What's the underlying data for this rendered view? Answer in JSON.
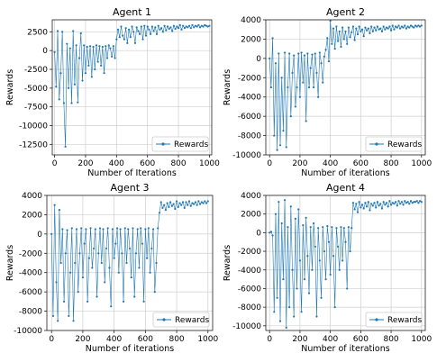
{
  "figure": {
    "background": "#ffffff"
  },
  "chart_data": [
    {
      "type": "line",
      "title": "Agent 1",
      "xlabel": "Number of Iterations",
      "ylabel": "Rewards",
      "xlim": [
        -15,
        1015
      ],
      "ylim": [
        -13900,
        4100
      ],
      "xticks": [
        0,
        200,
        400,
        600,
        800,
        1000
      ],
      "yticks": [
        2500,
        0,
        -2500,
        -5000,
        -7500,
        -10000,
        -12500
      ],
      "grid": true,
      "legend": {
        "location": "bottom-right",
        "entries": [
          "Rewards"
        ]
      },
      "series": [
        {
          "name": "Rewards",
          "color": "#1f77b4",
          "x": [
            0,
            10,
            20,
            30,
            40,
            50,
            60,
            70,
            80,
            90,
            100,
            110,
            120,
            130,
            140,
            150,
            160,
            170,
            180,
            190,
            200,
            210,
            220,
            230,
            240,
            250,
            260,
            270,
            280,
            290,
            300,
            310,
            320,
            330,
            340,
            350,
            360,
            370,
            380,
            390,
            400,
            410,
            420,
            430,
            440,
            450,
            460,
            470,
            480,
            490,
            500,
            510,
            520,
            530,
            540,
            550,
            560,
            570,
            580,
            590,
            600,
            610,
            620,
            630,
            640,
            650,
            660,
            670,
            680,
            690,
            700,
            710,
            720,
            730,
            740,
            750,
            760,
            770,
            780,
            790,
            800,
            810,
            820,
            830,
            840,
            850,
            860,
            870,
            880,
            890,
            900,
            910,
            920,
            930,
            940,
            950,
            960,
            970,
            980,
            990,
            1000
          ],
          "y": [
            -200,
            -4800,
            2600,
            -6500,
            -3000,
            2500,
            -7000,
            -12800,
            900,
            -5000,
            300,
            -7000,
            2600,
            -4500,
            700,
            -6900,
            -1000,
            2300,
            -4000,
            700,
            -3000,
            500,
            -2000,
            600,
            -3500,
            500,
            -2500,
            700,
            -1500,
            600,
            -2000,
            500,
            -3000,
            600,
            -1000,
            700,
            300,
            -800,
            600,
            -1000,
            1500,
            2800,
            1800,
            3200,
            2000,
            1500,
            3000,
            1000,
            2800,
            1800,
            3200,
            2500,
            1000,
            3100,
            2600,
            2200,
            3200,
            1500,
            3300,
            2000,
            3200,
            2800,
            2200,
            3200,
            2600,
            3100,
            2200,
            3300,
            2800,
            3000,
            2500,
            3300,
            2700,
            3200,
            2900,
            3100,
            2600,
            3300,
            2900,
            3200,
            3000,
            3400,
            2800,
            3300,
            3000,
            3200,
            3100,
            3300,
            3000,
            3400,
            3100,
            3300,
            3200,
            3400,
            3100,
            3300,
            3200,
            3400,
            3300,
            3200,
            3300
          ]
        }
      ]
    },
    {
      "type": "line",
      "title": "Agent 2",
      "xlabel": "Number of iterations",
      "ylabel": "Rewards",
      "xlim": [
        -25,
        1025
      ],
      "ylim": [
        -10000,
        4000
      ],
      "xticks": [
        0,
        200,
        400,
        600,
        800,
        1000
      ],
      "yticks": [
        4000,
        2000,
        0,
        -2000,
        -4000,
        -6000,
        -8000,
        -10000
      ],
      "grid": true,
      "legend": {
        "location": "bottom-right",
        "entries": [
          "Rewards"
        ]
      },
      "series": [
        {
          "name": "Rewards",
          "color": "#1f77b4",
          "x": [
            0,
            10,
            20,
            30,
            40,
            50,
            60,
            70,
            80,
            90,
            100,
            110,
            120,
            130,
            140,
            150,
            160,
            170,
            180,
            190,
            200,
            210,
            220,
            230,
            240,
            250,
            260,
            270,
            280,
            290,
            300,
            310,
            320,
            330,
            340,
            350,
            360,
            370,
            380,
            390,
            400,
            410,
            420,
            430,
            440,
            450,
            460,
            470,
            480,
            490,
            500,
            510,
            520,
            530,
            540,
            550,
            560,
            570,
            580,
            590,
            600,
            610,
            620,
            630,
            640,
            650,
            660,
            670,
            680,
            690,
            700,
            710,
            720,
            730,
            740,
            750,
            760,
            770,
            780,
            790,
            800,
            810,
            820,
            830,
            840,
            850,
            860,
            870,
            880,
            890,
            900,
            910,
            920,
            930,
            940,
            950,
            960,
            970,
            980,
            990,
            1000
          ],
          "y": [
            0,
            -3000,
            2100,
            -8000,
            -500,
            -9500,
            500,
            -9000,
            -2000,
            -7500,
            600,
            -9200,
            -3000,
            500,
            -6000,
            -1500,
            300,
            -5000,
            -3000,
            500,
            -4000,
            600,
            -2500,
            300,
            -6500,
            500,
            -3000,
            -1000,
            400,
            -3000,
            500,
            -1500,
            -4000,
            600,
            -500,
            -2500,
            200,
            900,
            2100,
            -300,
            3900,
            1500,
            3100,
            1000,
            3300,
            1800,
            2800,
            1200,
            3200,
            2000,
            2800,
            1500,
            3200,
            2200,
            2700,
            3300,
            1900,
            3100,
            2500,
            3300,
            2800,
            3000,
            2300,
            3200,
            2900,
            3100,
            2600,
            3300,
            2800,
            3200,
            2900,
            3300,
            3000,
            3100,
            2800,
            3300,
            3000,
            3200,
            3100,
            3300,
            2900,
            3400,
            3000,
            3300,
            3200,
            3400,
            3100,
            3300,
            3200,
            3400,
            3100,
            3300,
            3200,
            3400,
            3300,
            3200,
            3400,
            3300,
            3400,
            3300,
            3400
          ]
        }
      ]
    },
    {
      "type": "line",
      "title": "Agent 3",
      "xlabel": "Number of iterations",
      "ylabel": "Rewards",
      "xlim": [
        -30,
        1030
      ],
      "ylim": [
        -10000,
        4000
      ],
      "xticks": [
        0,
        200,
        400,
        600,
        800,
        1000
      ],
      "yticks": [
        4000,
        2000,
        0,
        -2000,
        -4000,
        -6000,
        -8000,
        -10000
      ],
      "grid": true,
      "legend": {
        "location": "bottom-right",
        "entries": [
          "Rewards"
        ]
      },
      "series": [
        {
          "name": "Rewards",
          "color": "#1f77b4",
          "x": [
            0,
            10,
            20,
            30,
            40,
            50,
            60,
            70,
            80,
            90,
            100,
            110,
            120,
            130,
            140,
            150,
            160,
            170,
            180,
            190,
            200,
            210,
            220,
            230,
            240,
            250,
            260,
            270,
            280,
            290,
            300,
            310,
            320,
            330,
            340,
            350,
            360,
            370,
            380,
            390,
            400,
            410,
            420,
            430,
            440,
            450,
            460,
            470,
            480,
            490,
            500,
            510,
            520,
            530,
            540,
            550,
            560,
            570,
            580,
            590,
            600,
            610,
            620,
            630,
            640,
            650,
            660,
            670,
            680,
            690,
            700,
            710,
            720,
            730,
            740,
            750,
            760,
            770,
            780,
            790,
            800,
            810,
            820,
            830,
            840,
            850,
            860,
            870,
            880,
            890,
            900,
            910,
            920,
            930,
            940,
            950,
            960,
            970,
            980,
            990,
            1000
          ],
          "y": [
            0,
            -8500,
            3000,
            -5000,
            -9000,
            2500,
            -3000,
            500,
            -7000,
            -2000,
            400,
            -8500,
            -4000,
            600,
            -9000,
            -3000,
            500,
            -6000,
            -2000,
            600,
            -4500,
            -1000,
            500,
            -7000,
            -2500,
            600,
            -3500,
            -1500,
            500,
            -6500,
            -2000,
            600,
            -3000,
            500,
            -5000,
            -1500,
            600,
            -3500,
            -7500,
            500,
            -2500,
            -1000,
            600,
            -4000,
            500,
            -2000,
            -7000,
            600,
            -3000,
            500,
            -1500,
            -4500,
            600,
            -6500,
            -2000,
            500,
            -3500,
            600,
            -1000,
            -7000,
            500,
            -2500,
            600,
            -4000,
            -1500,
            500,
            -6000,
            -3000,
            600,
            2200,
            3300,
            2700,
            3000,
            2500,
            3200,
            2800,
            3300,
            2900,
            3100,
            2600,
            3400,
            2800,
            3200,
            3000,
            3300,
            2700,
            3300,
            3000,
            3400,
            2900,
            3200,
            3100,
            3300,
            3000,
            3400,
            3100,
            3300,
            3200,
            3400,
            3200,
            3400
          ]
        }
      ]
    },
    {
      "type": "line",
      "title": "Agent 4",
      "xlabel": "Number of iterations",
      "ylabel": "Rewards",
      "xlim": [
        -25,
        1025
      ],
      "ylim": [
        -10500,
        4000
      ],
      "xticks": [
        0,
        200,
        400,
        600,
        800,
        1000
      ],
      "yticks": [
        4000,
        2000,
        0,
        -2000,
        -4000,
        -6000,
        -8000,
        -10000
      ],
      "grid": true,
      "legend": {
        "location": "bottom-right",
        "entries": [
          "Rewards"
        ]
      },
      "series": [
        {
          "name": "Rewards",
          "color": "#1f77b4",
          "x": [
            0,
            10,
            20,
            30,
            40,
            50,
            60,
            70,
            80,
            90,
            100,
            110,
            120,
            130,
            140,
            150,
            160,
            170,
            180,
            190,
            200,
            210,
            220,
            230,
            240,
            250,
            260,
            270,
            280,
            290,
            300,
            310,
            320,
            330,
            340,
            350,
            360,
            370,
            380,
            390,
            400,
            410,
            420,
            430,
            440,
            450,
            460,
            470,
            480,
            490,
            500,
            510,
            520,
            530,
            540,
            550,
            560,
            570,
            580,
            590,
            600,
            610,
            620,
            630,
            640,
            650,
            660,
            670,
            680,
            690,
            700,
            710,
            720,
            730,
            740,
            750,
            760,
            770,
            780,
            790,
            800,
            810,
            820,
            830,
            840,
            850,
            860,
            870,
            880,
            890,
            900,
            910,
            920,
            930,
            940,
            950,
            960,
            970,
            980,
            990,
            1000
          ],
          "y": [
            0,
            100,
            -300,
            -8500,
            2000,
            -7000,
            3300,
            -9500,
            1000,
            -5000,
            3500,
            -10200,
            600,
            -8000,
            2800,
            -4000,
            -9000,
            1500,
            -6000,
            2500,
            -3000,
            -8500,
            800,
            -5000,
            1600,
            -2500,
            -6500,
            600,
            -4000,
            1000,
            -1500,
            -9000,
            500,
            -3000,
            -7000,
            600,
            -2000,
            -5000,
            700,
            -1000,
            -4500,
            600,
            -2500,
            -8000,
            500,
            -1500,
            -4000,
            600,
            -3000,
            500,
            -1000,
            -6000,
            600,
            -2000,
            500,
            3200,
            2500,
            3100,
            2200,
            3300,
            2700,
            3000,
            2600,
            3200,
            2800,
            3300,
            2400,
            3100,
            2900,
            3200,
            2700,
            3300,
            2900,
            3100,
            2600,
            3300,
            3000,
            3200,
            2800,
            3400,
            3000,
            3200,
            3100,
            3300,
            2900,
            3400,
            3100,
            3300,
            3000,
            3400,
            3200,
            3300,
            3100,
            3400,
            3200,
            3300,
            3300,
            3400,
            3200,
            3400,
            3300
          ]
        }
      ]
    }
  ]
}
